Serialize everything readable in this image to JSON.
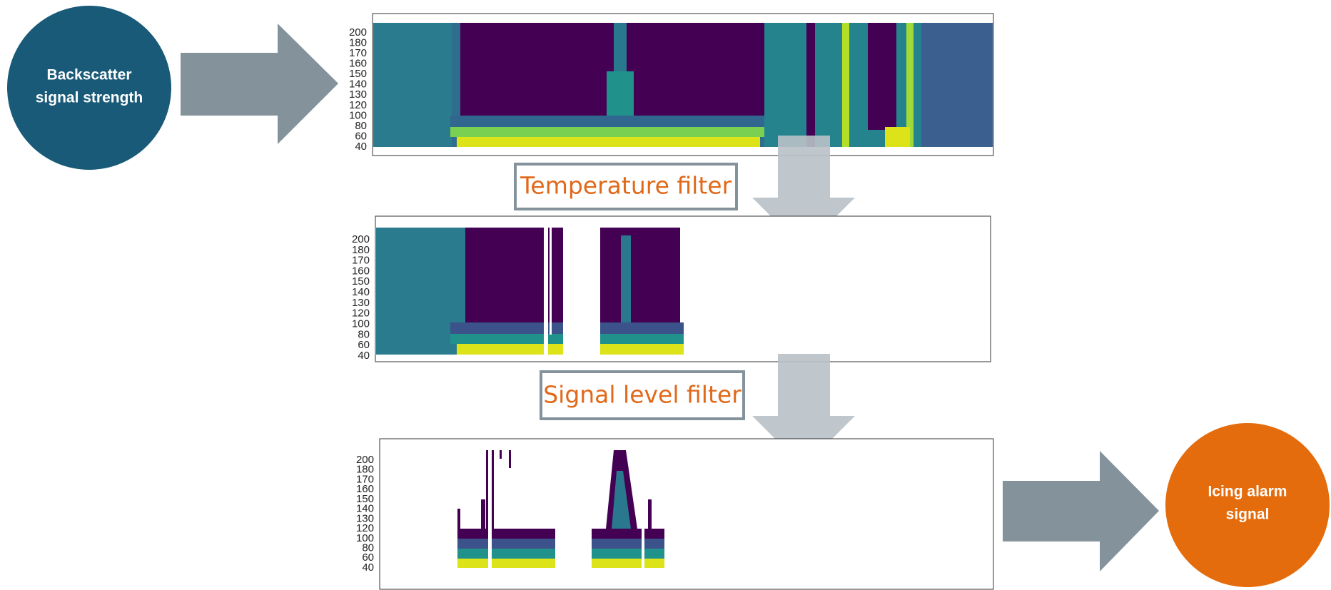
{
  "input": {
    "label_lines": [
      "Backscatter",
      "signal strength"
    ]
  },
  "panels": [
    {
      "yticks": [
        200,
        180,
        170,
        160,
        150,
        140,
        130,
        120,
        100,
        80,
        60,
        40
      ]
    },
    {
      "yticks": [
        200,
        180,
        170,
        160,
        150,
        140,
        130,
        120,
        100,
        80,
        60,
        40
      ]
    },
    {
      "yticks": [
        200,
        180,
        170,
        160,
        150,
        140,
        130,
        120,
        100,
        80,
        60,
        40
      ]
    }
  ],
  "filters": [
    "Temperature filter",
    "Signal level filter"
  ],
  "output": {
    "label_lines": [
      "Icing alarm",
      "signal"
    ]
  }
}
